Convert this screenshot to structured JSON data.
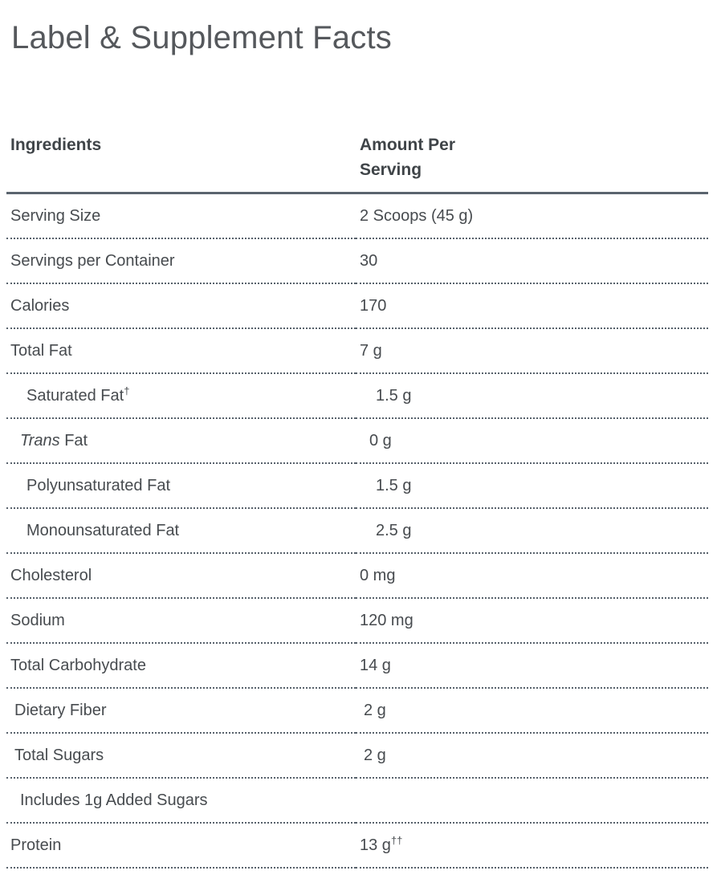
{
  "page": {
    "title": "Label & Supplement Facts"
  },
  "colors": {
    "title_text": "#55585c",
    "header_text": "#3f4448",
    "body_text": "#474b4f",
    "rule": "#5a646e",
    "dotted_divider": "#57616b",
    "background": "#ffffff"
  },
  "table": {
    "headers": {
      "col1": "Ingredients",
      "col2": "Amount Per Serving"
    },
    "rows": [
      {
        "label": "Serving Size",
        "value": "2 Scoops (45 g)",
        "indent": 0
      },
      {
        "label": "Servings per Container",
        "value": "30",
        "indent": 0
      },
      {
        "label": "Calories",
        "value": "170",
        "indent": 0
      },
      {
        "label": "Total Fat",
        "value": "7 g",
        "indent": 0
      },
      {
        "label": "Saturated Fat",
        "label_sup": "†",
        "value": "1.5 g",
        "indent": 3
      },
      {
        "italic_prefix": "Trans",
        "label": " Fat",
        "value": "0 g",
        "indent": 2
      },
      {
        "label": "Polyunsaturated Fat",
        "value": "1.5 g",
        "indent": 3
      },
      {
        "label": "Monounsaturated Fat",
        "value": "2.5 g",
        "indent": 3
      },
      {
        "label": "Cholesterol",
        "value": "0 mg",
        "indent": 0
      },
      {
        "label": "Sodium",
        "value": "120 mg",
        "indent": 0
      },
      {
        "label": "Total Carbohydrate",
        "value": "14 g",
        "indent": 0
      },
      {
        "label": "Dietary Fiber",
        "value": "2 g",
        "indent": 1
      },
      {
        "label": "Total Sugars",
        "value": "2 g",
        "indent": 1
      },
      {
        "label": "Includes 1g Added Sugars",
        "value": "",
        "indent": 2
      },
      {
        "label": "Protein",
        "value": "13 g",
        "value_sup": "††",
        "indent": 0
      },
      {
        "label": " ",
        "value": "",
        "indent": 0
      }
    ]
  }
}
